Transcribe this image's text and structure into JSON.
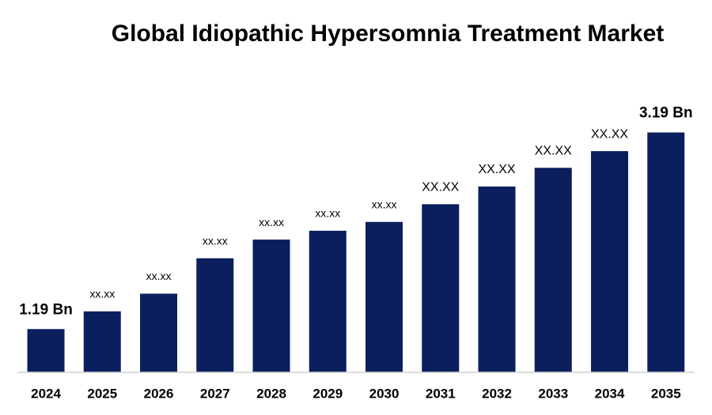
{
  "chart_data": {
    "type": "bar",
    "title": "Global Idiopathic Hypersomnia Treatment Market",
    "categories": [
      "2024",
      "2025",
      "2026",
      "2027",
      "2028",
      "2029",
      "2030",
      "2031",
      "2032",
      "2033",
      "2034",
      "2035"
    ],
    "values": [
      1.19,
      1.37,
      1.55,
      1.91,
      2.1,
      2.19,
      2.28,
      2.46,
      2.64,
      2.83,
      3.0,
      3.19
    ],
    "value_labels": [
      "1.19 Bn",
      "xx.xx",
      "xx.xx",
      "xx.xx",
      "xx.xx",
      "xx.xx",
      "xx.xx",
      "XX.XX",
      "XX.XX",
      "XX.XX",
      "XX.XX",
      "3.19 Bn"
    ],
    "color": "#0b1f5e",
    "ylim": [
      0.75,
      3.5
    ]
  }
}
